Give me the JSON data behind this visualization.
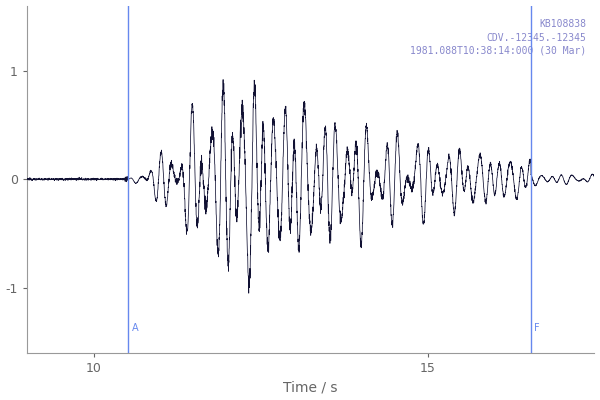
{
  "title_lines": [
    "KB108838",
    "CDV.-12345.-12345",
    "1981.088T10:38:14:000 (30 Mar)"
  ],
  "xlabel": "Time / s",
  "yticks": [
    -1,
    0,
    1
  ],
  "ytick_labels": [
    "-1",
    "0",
    "1"
  ],
  "xlim": [
    9.0,
    17.5
  ],
  "ylim": [
    -1.6,
    1.6
  ],
  "xticks": [
    10,
    15
  ],
  "vline1_x": 10.52,
  "vline1_label": "A",
  "vline2_x": 16.55,
  "vline2_label": "F",
  "vline_color": "#6688ee",
  "trace_color": "#111133",
  "background_color": "#ffffff",
  "fig_width": 6.0,
  "fig_height": 4.0,
  "dpi": 100,
  "annotation_color": "#8888cc",
  "axis_color": "#999999",
  "tick_color": "#666666"
}
